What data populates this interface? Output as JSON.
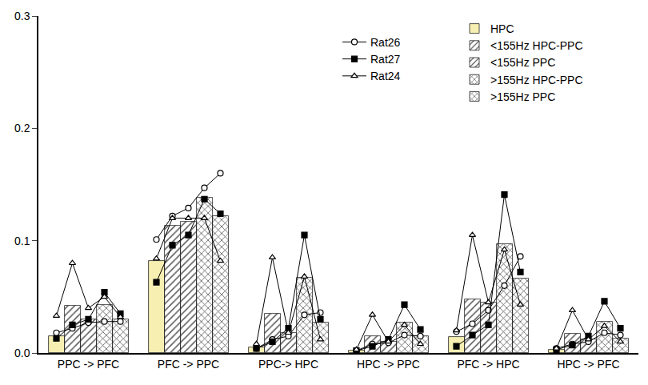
{
  "chart_data": {
    "type": "bar",
    "categories": [
      "PPC -> PFC",
      "PFC -> PPC",
      "PPC-> HPC",
      "HPC -> PPC",
      "PFC -> HPC",
      "HPC -> PFC"
    ],
    "ylim": [
      0,
      0.3
    ],
    "yticks": [
      {
        "value": 0,
        "label": "0.0"
      },
      {
        "value": 0.1,
        "label": "0.1"
      },
      {
        "value": 0.2,
        "label": "0.2"
      },
      {
        "value": 0.3,
        "label": "0.3"
      }
    ],
    "grid": false,
    "legend": "top right",
    "series": [
      {
        "name": "HPC",
        "type": "bar",
        "color": "#f7efb2",
        "values": [
          0.015,
          0.082,
          0.005,
          0.002,
          0.014,
          0.003
        ]
      },
      {
        "name": "<155Hz HPC-PPC",
        "type": "bar",
        "color": "#efe49a",
        "values": [
          0.042,
          0.113,
          0.035,
          0.015,
          0.048,
          0.017
        ]
      },
      {
        "name": "<155Hz PPC",
        "type": "bar",
        "color": "#ffffff",
        "values": [
          0.03,
          0.117,
          0.018,
          0.01,
          0.045,
          0.012
        ]
      },
      {
        "name": ">155Hz HPC-PPC",
        "type": "bar",
        "color": "#e6da8a",
        "values": [
          0.043,
          0.138,
          0.067,
          0.027,
          0.097,
          0.028
        ]
      },
      {
        "name": ">155Hz PPC",
        "type": "bar",
        "color": "#ffffff",
        "values": [
          0.03,
          0.122,
          0.027,
          0.015,
          0.066,
          0.013
        ]
      },
      {
        "name": "Rat26",
        "type": "line",
        "marker": "circle",
        "color": "#000000",
        "values": [
          [
            0.018,
            0.022,
            0.027,
            0.028,
            0.028
          ],
          [
            0.101,
            0.122,
            0.129,
            0.147,
            0.16
          ],
          [
            0.004,
            0.012,
            0.015,
            0.034,
            0.036
          ],
          [
            0.002,
            0.008,
            0.009,
            0.016,
            0.015
          ],
          [
            0.019,
            0.026,
            0.038,
            0.06,
            0.086
          ],
          [
            0.004,
            0.008,
            0.01,
            0.018,
            0.016
          ]
        ]
      },
      {
        "name": "Rat27",
        "type": "line",
        "marker": "square",
        "color": "#000000",
        "values": [
          [
            0.013,
            0.025,
            0.03,
            0.054,
            0.035
          ],
          [
            0.063,
            0.096,
            0.105,
            0.137,
            0.124
          ],
          [
            0.004,
            0.01,
            0.022,
            0.105,
            0.03
          ],
          [
            0.002,
            0.006,
            0.012,
            0.043,
            0.021
          ],
          [
            0.006,
            0.016,
            0.025,
            0.141,
            0.072
          ],
          [
            0.003,
            0.007,
            0.015,
            0.046,
            0.022
          ]
        ]
      },
      {
        "name": "Rat24",
        "type": "line",
        "marker": "triangle-up",
        "color": "#000000",
        "values": [
          [
            0.033,
            0.08,
            0.04,
            0.05,
            0.032
          ],
          [
            0.084,
            0.12,
            0.12,
            0.12,
            0.082
          ],
          [
            0.008,
            0.085,
            0.018,
            0.068,
            0.012
          ],
          [
            0.003,
            0.034,
            0.01,
            0.025,
            0.008
          ],
          [
            0.02,
            0.105,
            0.045,
            0.092,
            0.043
          ],
          [
            0.004,
            0.038,
            0.012,
            0.024,
            0.01
          ]
        ]
      }
    ]
  }
}
